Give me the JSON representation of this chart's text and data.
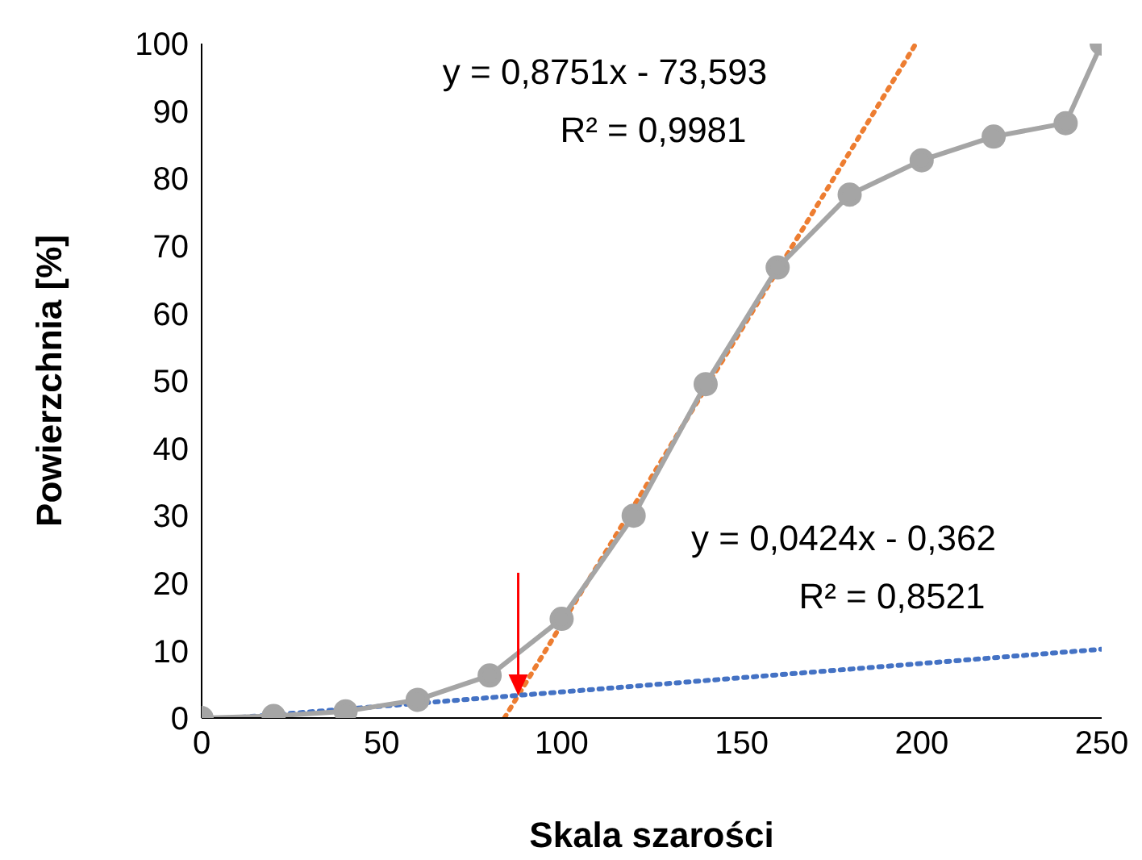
{
  "chart_data": {
    "type": "line",
    "xlabel": "Skala szarości",
    "ylabel": "Powierzchnia [%]",
    "xlim": [
      0,
      250
    ],
    "xticks": [
      0,
      50,
      100,
      150,
      200,
      250
    ],
    "ylim": [
      0,
      100
    ],
    "yticks": [
      0,
      10,
      20,
      30,
      40,
      50,
      60,
      70,
      80,
      90,
      100
    ],
    "grid": false,
    "legend": false,
    "series": [
      {
        "type": "line",
        "color": "#ed7d31",
        "line_style": "dotted",
        "marker": "none",
        "x": [
          84.1,
          198.4
        ],
        "values": [
          0,
          100
        ]
      },
      {
        "type": "line",
        "color": "#4472c4",
        "line_style": "dotted",
        "marker": "none",
        "x": [
          8.54,
          250
        ],
        "values": [
          0,
          10.2
        ]
      },
      {
        "type": "line",
        "color": "#a5a5a5",
        "line_style": "solid",
        "marker": "circle",
        "x": [
          0,
          20,
          40,
          60,
          80,
          100,
          120,
          140,
          160,
          180,
          200,
          220,
          240,
          250
        ],
        "values": [
          0,
          0.3,
          1,
          2.7,
          6.3,
          14.7,
          30,
          49.5,
          66.8,
          77.6,
          82.7,
          86.2,
          88.2,
          100
        ]
      }
    ],
    "annotations": [
      "y = 0,8751x - 73,593\nR² = 0,9981",
      "y = 0,0424x - 0,362\nR² = 0,8521"
    ]
  }
}
